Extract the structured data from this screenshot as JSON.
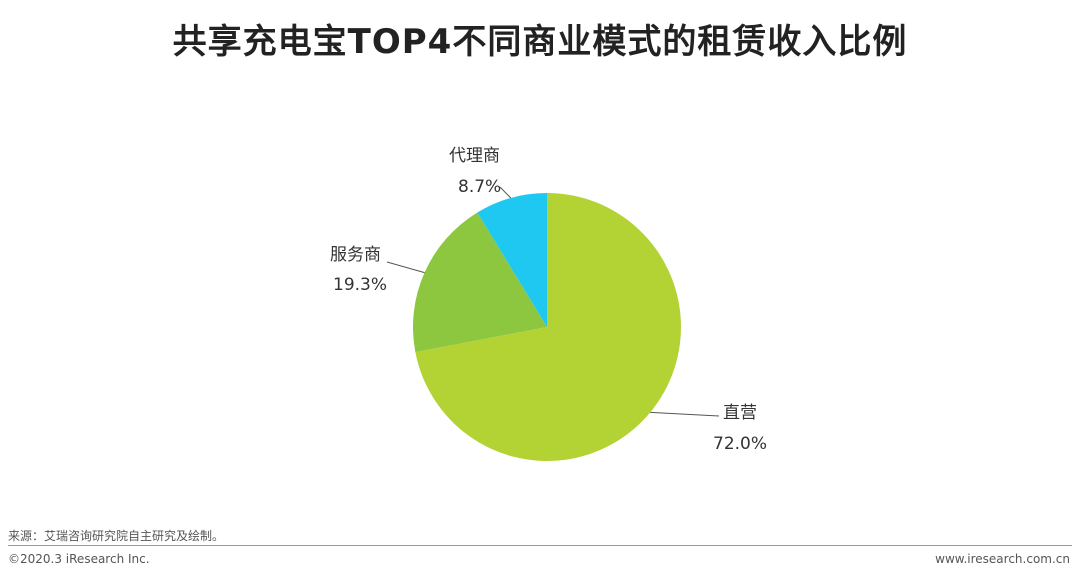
{
  "title": "共享充电宝TOP4不同商业模式的租赁收入比例",
  "footer": {
    "source": "来源：艾瑞咨询研究院自主研究及绘制。",
    "copyright": "©2020.3 iResearch Inc.",
    "website": "www.iresearch.com.cn"
  },
  "chart_data": {
    "type": "pie",
    "categories": [
      "直营",
      "服务商",
      "代理商"
    ],
    "values": [
      72.0,
      19.3,
      8.7
    ],
    "value_labels": [
      "72.0%",
      "19.3%",
      "8.7%"
    ],
    "colors": [
      "#b3d334",
      "#8dc63f",
      "#1ec8f0"
    ]
  }
}
